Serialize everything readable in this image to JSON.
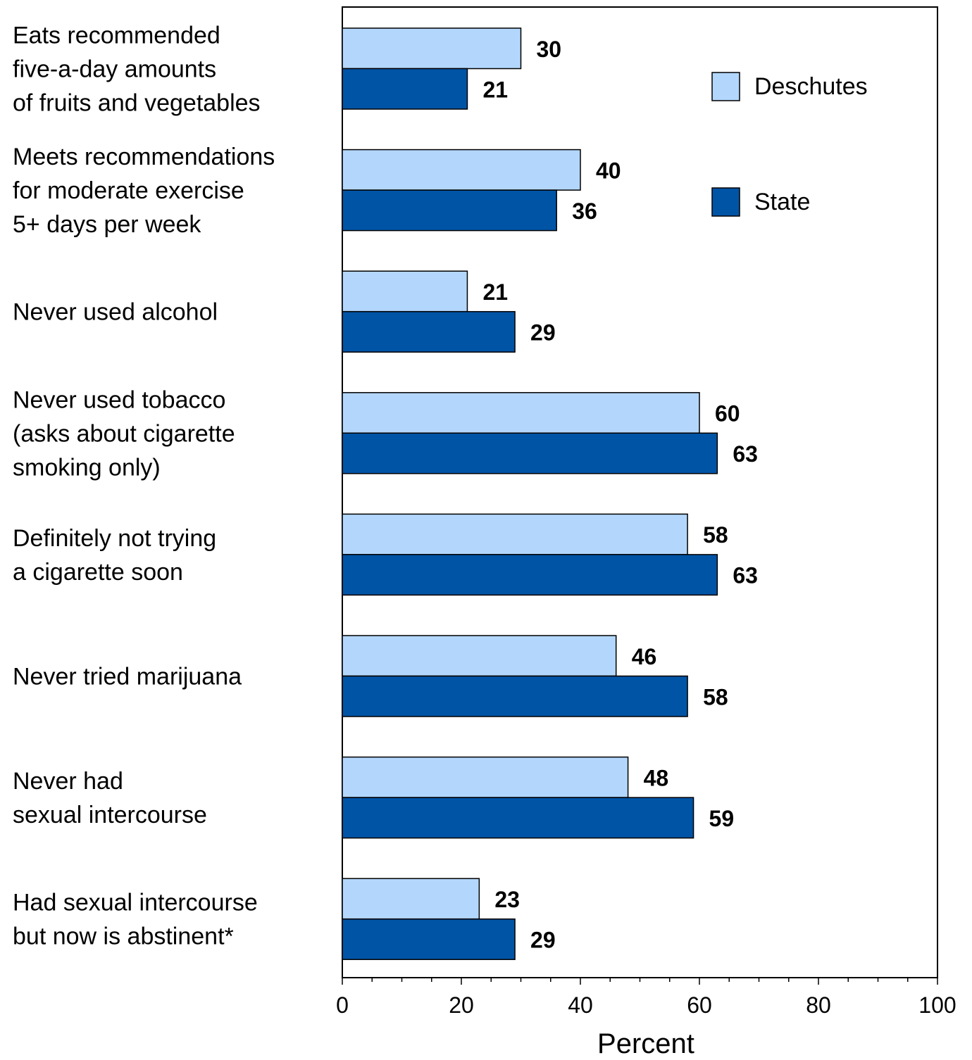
{
  "chart_data": {
    "type": "bar",
    "orientation": "horizontal",
    "title": "",
    "xlabel": "Percent",
    "ylabel": "",
    "xlim": [
      0,
      100
    ],
    "x_ticks": [
      "0",
      "20",
      "40",
      "60",
      "80",
      "100"
    ],
    "grid": false,
    "legend_position": "top-right",
    "categories": [
      [
        "Eats recommended",
        "five-a-day amounts",
        "of fruits and vegetables"
      ],
      [
        "Meets recommendations",
        "for moderate exercise",
        "5+ days per week"
      ],
      [
        "Never used alcohol"
      ],
      [
        "Never used tobacco",
        "(asks about cigarette",
        "smoking only)"
      ],
      [
        "Definitely not trying",
        "a cigarette soon"
      ],
      [
        "Never tried marijuana"
      ],
      [
        "Never had",
        "sexual intercourse"
      ],
      [
        "Had sexual intercourse",
        "but now is abstinent*"
      ]
    ],
    "series": [
      {
        "name": "Deschutes",
        "color": "#b3d7fc",
        "values": [
          30,
          40,
          21,
          60,
          58,
          46,
          48,
          23
        ]
      },
      {
        "name": "State",
        "color": "#0054a6",
        "values": [
          21,
          36,
          29,
          63,
          63,
          58,
          59,
          29
        ]
      }
    ]
  }
}
